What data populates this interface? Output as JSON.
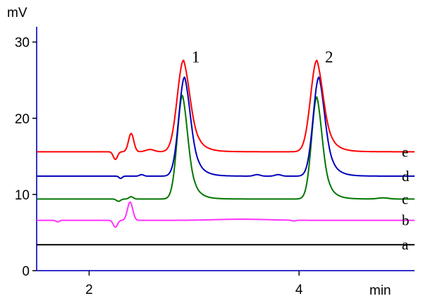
{
  "chart_data": {
    "type": "line",
    "title": "",
    "xlabel": "min",
    "ylabel": "mV",
    "xlim": [
      1.5,
      5.1
    ],
    "ylim": [
      0,
      32
    ],
    "x_ticks": [
      2,
      4
    ],
    "y_ticks": [
      0,
      10,
      20,
      30
    ],
    "grid": false,
    "axis_color": "#3333cc",
    "peaks": [
      {
        "label": "1",
        "x": 2.91,
        "y": 27.5
      },
      {
        "label": "2",
        "x": 4.18,
        "y": 27.5
      }
    ],
    "series": [
      {
        "name": "a",
        "color": "#000000",
        "baseline": 3.4,
        "features": []
      },
      {
        "name": "b",
        "color": "#ff33ff",
        "baseline": 6.6,
        "features": [
          {
            "x": 1.7,
            "amp": -0.2,
            "w": 0.015
          },
          {
            "x": 2.25,
            "amp": -0.9,
            "w": 0.02
          },
          {
            "x": 2.39,
            "amp": 2.4,
            "w": 0.025
          },
          {
            "x": 3.45,
            "amp": 0.15,
            "w": 0.25
          },
          {
            "x": 3.95,
            "amp": -0.1,
            "w": 0.02
          }
        ]
      },
      {
        "name": "c",
        "color": "#007700",
        "baseline": 9.4,
        "features": [
          {
            "x": 2.28,
            "amp": -0.3,
            "w": 0.02
          },
          {
            "x": 2.4,
            "amp": 0.3,
            "w": 0.02
          },
          {
            "x": 2.89,
            "amp": 13.6,
            "w": 0.05,
            "tail": 0.1
          },
          {
            "x": 4.17,
            "amp": 13.4,
            "w": 0.05,
            "tail": 0.1
          },
          {
            "x": 4.8,
            "amp": 0.15,
            "w": 0.05
          }
        ]
      },
      {
        "name": "d",
        "color": "#0000bb",
        "baseline": 12.4,
        "features": [
          {
            "x": 2.3,
            "amp": -0.3,
            "w": 0.015
          },
          {
            "x": 2.5,
            "amp": 0.2,
            "w": 0.02
          },
          {
            "x": 2.91,
            "amp": 13.0,
            "w": 0.055,
            "tail": 0.11
          },
          {
            "x": 3.6,
            "amp": 0.2,
            "w": 0.03
          },
          {
            "x": 3.8,
            "amp": 0.2,
            "w": 0.03
          },
          {
            "x": 4.19,
            "amp": 13.0,
            "w": 0.055,
            "tail": 0.11
          }
        ]
      },
      {
        "name": "e",
        "color": "#ff0000",
        "baseline": 15.6,
        "features": [
          {
            "x": 2.25,
            "amp": -1.0,
            "w": 0.02
          },
          {
            "x": 2.4,
            "amp": 2.4,
            "w": 0.025
          },
          {
            "x": 2.58,
            "amp": 0.3,
            "w": 0.04
          },
          {
            "x": 2.9,
            "amp": 12.0,
            "w": 0.06,
            "tail": 0.12
          },
          {
            "x": 4.17,
            "amp": 12.0,
            "w": 0.06,
            "tail": 0.12
          }
        ]
      }
    ]
  }
}
